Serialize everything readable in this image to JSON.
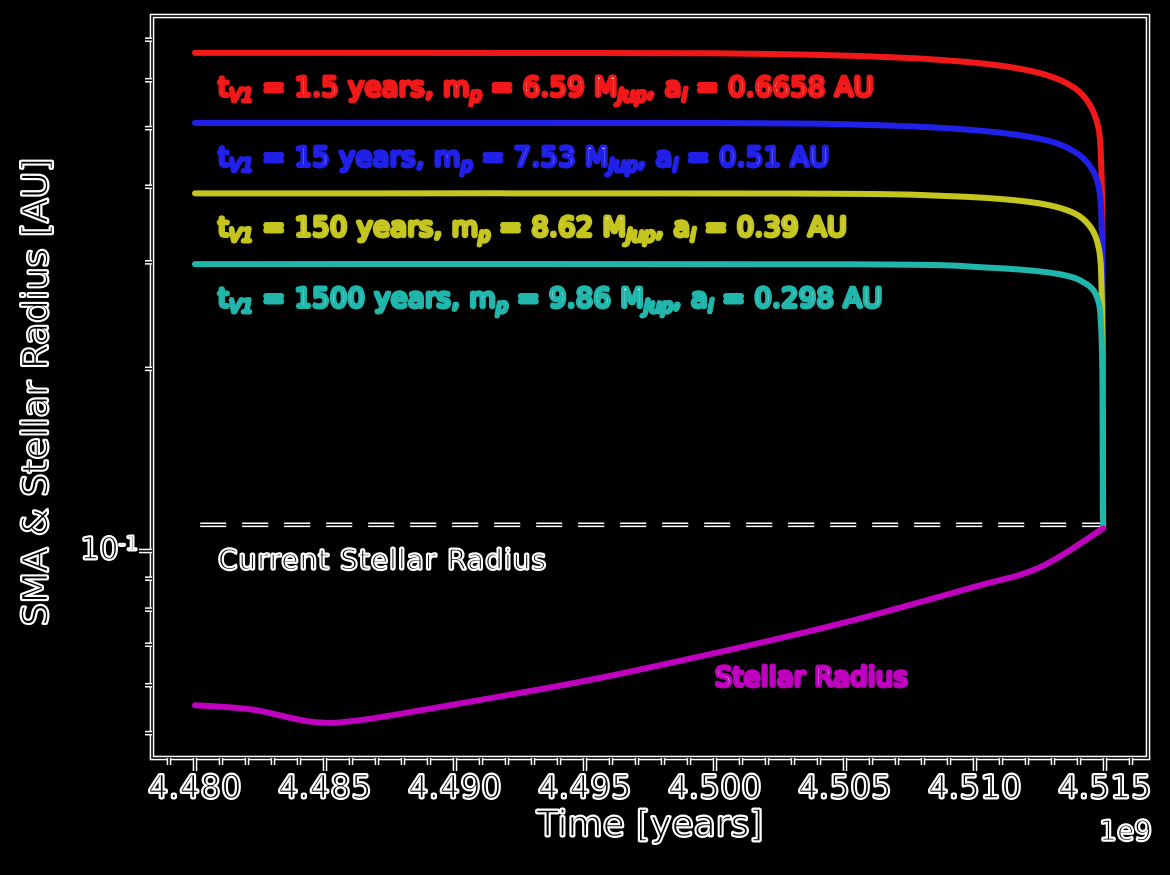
{
  "figure": {
    "background": "#000000",
    "frame_color": "#ffffff"
  },
  "chart_data": {
    "type": "line",
    "title": "",
    "xlabel": "Time [years]",
    "ylabel": "SMA & Stellar Radius [AU]",
    "x_offset_label": "1e9",
    "yscale": "log",
    "xlim": [
      4.47835,
      4.51665
    ],
    "ylim": [
      0.0455,
      0.766
    ],
    "grid": false,
    "legend_position": "none (inline colored annotations)",
    "x_major_ticks": [
      4.48,
      4.485,
      4.49,
      4.495,
      4.5,
      4.505,
      4.51,
      4.515
    ],
    "x_tick_labels": [
      "4.480",
      "4.485",
      "4.490",
      "4.495",
      "4.500",
      "4.505",
      "4.510",
      "4.515"
    ],
    "x_minor_tick_step": 0.001,
    "y_major_ticks": [
      0.1
    ],
    "y_major_tick_labels": [
      "10^{-1}"
    ],
    "y_minor_ticks": [
      0.7,
      0.6,
      0.5,
      0.4,
      0.3,
      0.2,
      0.09,
      0.08,
      0.07,
      0.06,
      0.05
    ],
    "reference_line": {
      "label": "Current Stellar Radius",
      "value": 0.1105,
      "style": "dashed",
      "color": "#ffffff",
      "x_start": 4.4802,
      "x_end": 4.5149
    },
    "series": [
      {
        "id": "planet-red",
        "name": "t_V1 = 1.5 years",
        "color": "#f01818",
        "initial_sma_au": 0.6658,
        "planet_mass_mjup": 6.59,
        "annotation": "t_{V1} = 1.5 years, m_{p} = 6.59 M_{Jup}, a_{i} = 0.6658 AU",
        "points": [
          [
            4.48,
            0.6658
          ],
          [
            4.496,
            0.6655
          ],
          [
            4.501,
            0.664
          ],
          [
            4.505,
            0.659
          ],
          [
            4.5085,
            0.649
          ],
          [
            4.511,
            0.634
          ],
          [
            4.5127,
            0.613
          ],
          [
            4.5138,
            0.584
          ],
          [
            4.5144,
            0.548
          ],
          [
            4.51475,
            0.5
          ],
          [
            4.51485,
            0.44
          ],
          [
            4.51489,
            0.37
          ],
          [
            4.51491,
            0.26
          ],
          [
            4.51492,
            0.115
          ]
        ]
      },
      {
        "id": "planet-blue",
        "name": "t_V1 = 15 years",
        "color": "#2020e8",
        "initial_sma_au": 0.51,
        "planet_mass_mjup": 7.53,
        "annotation": "t_{V1} = 15 years, m_{p} = 7.53 M_{Jup}, a_{i} = 0.51 AU",
        "points": [
          [
            4.48,
            0.51
          ],
          [
            4.5,
            0.5098
          ],
          [
            4.506,
            0.506
          ],
          [
            4.51,
            0.496
          ],
          [
            4.5125,
            0.48
          ],
          [
            4.5138,
            0.458
          ],
          [
            4.5145,
            0.428
          ],
          [
            4.5148,
            0.39
          ],
          [
            4.51488,
            0.33
          ],
          [
            4.51491,
            0.24
          ],
          [
            4.51492,
            0.114
          ]
        ]
      },
      {
        "id": "planet-yellow",
        "name": "t_V1 = 150 years",
        "color": "#c5c520",
        "initial_sma_au": 0.39,
        "planet_mass_mjup": 8.62,
        "annotation": "t_{V1} = 150 years, m_{p} = 8.62 M_{Jup}, a_{i} = 0.39 AU",
        "points": [
          [
            4.48,
            0.39
          ],
          [
            4.503,
            0.3898
          ],
          [
            4.509,
            0.386
          ],
          [
            4.512,
            0.378
          ],
          [
            4.5136,
            0.365
          ],
          [
            4.5144,
            0.345
          ],
          [
            4.51477,
            0.315
          ],
          [
            4.51487,
            0.27
          ],
          [
            4.51491,
            0.2
          ],
          [
            4.51492,
            0.113
          ]
        ]
      },
      {
        "id": "planet-cyan",
        "name": "t_V1 = 1500 years",
        "color": "#20b6ac",
        "initial_sma_au": 0.298,
        "planet_mass_mjup": 9.86,
        "annotation": "t_{V1} = 1500 years, m_{p} = 9.86 M_{Jup}, a_{i} = 0.298 AU",
        "points": [
          [
            4.48,
            0.298
          ],
          [
            4.505,
            0.2978
          ],
          [
            4.5105,
            0.294
          ],
          [
            4.5132,
            0.287
          ],
          [
            4.5143,
            0.276
          ],
          [
            4.51473,
            0.26
          ],
          [
            4.51485,
            0.235
          ],
          [
            4.5149,
            0.195
          ],
          [
            4.51492,
            0.14
          ],
          [
            4.51493,
            0.11
          ]
        ]
      },
      {
        "id": "stellar-radius",
        "name": "Stellar Radius",
        "color": "#bf00bf",
        "annotation": "Stellar Radius",
        "annotation_pos": [
          4.5,
          0.0655
        ],
        "points": [
          [
            4.48,
            0.0556
          ],
          [
            4.4822,
            0.0547
          ],
          [
            4.4845,
            0.0522
          ],
          [
            4.4863,
            0.0525
          ],
          [
            4.49,
            0.0558
          ],
          [
            4.495,
            0.061
          ],
          [
            4.5,
            0.0678
          ],
          [
            4.505,
            0.0762
          ],
          [
            4.51,
            0.0873
          ],
          [
            4.5125,
            0.094
          ],
          [
            4.51493,
            0.109
          ]
        ]
      }
    ]
  }
}
